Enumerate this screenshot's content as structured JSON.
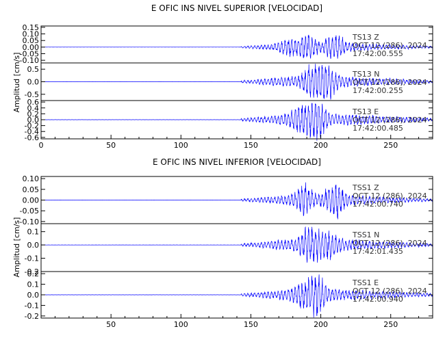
{
  "chart_data": [
    {
      "type": "line",
      "title": "E OFIC INS NIVEL SUPERIOR [VELOCIDAD]",
      "ylabel": "Amplitud [cm/s]",
      "xlim": [
        0,
        280
      ],
      "x_ticks": [
        0,
        50,
        100,
        150,
        200,
        250
      ],
      "line_color": "#0000ff",
      "panels": [
        {
          "name": "TS13 Z",
          "annotation": [
            "TS13  Z",
            "OCT 12 (286), 2024",
            "17:42:00.555"
          ],
          "ylim": [
            -0.12,
            0.16
          ],
          "y_ticks": [
            "0.15",
            "0.10",
            "0.05",
            "0.00",
            "-0.05",
            "-0.10"
          ],
          "y_tick_values": [
            0.15,
            0.1,
            0.05,
            0.0,
            -0.05,
            -0.1
          ],
          "seed": 11,
          "amp": 0.075,
          "peaks": [
            {
              "t": 190,
              "a": 0.9
            },
            {
              "t": 210,
              "a": 1.0
            },
            {
              "t": 177,
              "a": 0.55
            }
          ]
        },
        {
          "name": "TS13 N",
          "annotation": [
            "TS13  N",
            "OCT 12 (286), 2024",
            "17:42:00.255"
          ],
          "ylim": [
            -0.75,
            0.75
          ],
          "y_ticks": [
            "0.5",
            "0.0",
            "-0.5"
          ],
          "y_tick_values": [
            0.5,
            0.0,
            -0.5
          ],
          "seed": 23,
          "amp": 0.55,
          "peaks": [
            {
              "t": 195,
              "a": 0.9
            },
            {
              "t": 205,
              "a": 0.8
            }
          ]
        },
        {
          "name": "TS13 E",
          "annotation": [
            "TS13  E",
            "OCT 12 (286), 2024",
            "17:42:00.485"
          ],
          "ylim": [
            -0.65,
            0.65
          ],
          "y_ticks": [
            "0.6",
            "0.4",
            "0.2",
            "0.0",
            "-0.2",
            "-0.4",
            "-0.6"
          ],
          "y_tick_values": [
            0.6,
            0.4,
            0.2,
            0.0,
            -0.2,
            -0.4,
            -0.6
          ],
          "seed": 37,
          "amp": 0.5,
          "peaks": [
            {
              "t": 197,
              "a": 1.0
            },
            {
              "t": 186,
              "a": 0.6
            }
          ]
        }
      ]
    },
    {
      "type": "line",
      "title": "E OFIC INS NIVEL INFERIOR [VELOCIDAD]",
      "ylabel": "Amplitud [cm/s]",
      "xlim": [
        0,
        280
      ],
      "x_ticks": [
        50,
        100,
        150,
        200,
        250
      ],
      "line_color": "#0000ff",
      "panels": [
        {
          "name": "TSS1 Z",
          "annotation": [
            "TSS1  Z",
            "OCT 12 (286), 2024",
            "17:42:00.740"
          ],
          "ylim": [
            -0.11,
            0.11
          ],
          "y_ticks": [
            "0.10",
            "0.05",
            "0.00",
            "-0.05",
            "-0.10"
          ],
          "y_tick_values": [
            0.1,
            0.05,
            0.0,
            -0.05,
            -0.1
          ],
          "seed": 51,
          "amp": 0.06,
          "peaks": [
            {
              "t": 188,
              "a": 0.8
            },
            {
              "t": 210,
              "a": 1.0
            }
          ]
        },
        {
          "name": "TSS1 N",
          "annotation": [
            "TSS1  N",
            "OCT 12 (286), 2024",
            "17:42:01.435"
          ],
          "ylim": [
            -0.2,
            0.16
          ],
          "y_ticks": [
            "0.1",
            "0.0",
            "-0.1",
            "-0.2"
          ],
          "y_tick_values": [
            0.1,
            0.0,
            -0.1,
            -0.2
          ],
          "seed": 67,
          "amp": 0.11,
          "peaks": [
            {
              "t": 192,
              "a": 1.0
            },
            {
              "t": 205,
              "a": 0.7
            }
          ]
        },
        {
          "name": "TSS1 E",
          "annotation": [
            "TSS1  E",
            "OCT 12 (286), 2024",
            "17:42:00.940"
          ],
          "ylim": [
            -0.22,
            0.22
          ],
          "y_ticks": [
            "0.2",
            "0.1",
            "0.0",
            "-0.1",
            "-0.2"
          ],
          "y_tick_values": [
            0.2,
            0.1,
            0.0,
            -0.1,
            -0.2
          ],
          "seed": 83,
          "amp": 0.14,
          "peaks": [
            {
              "t": 197,
              "a": 1.0
            },
            {
              "t": 186,
              "a": 0.5
            }
          ]
        }
      ]
    }
  ]
}
